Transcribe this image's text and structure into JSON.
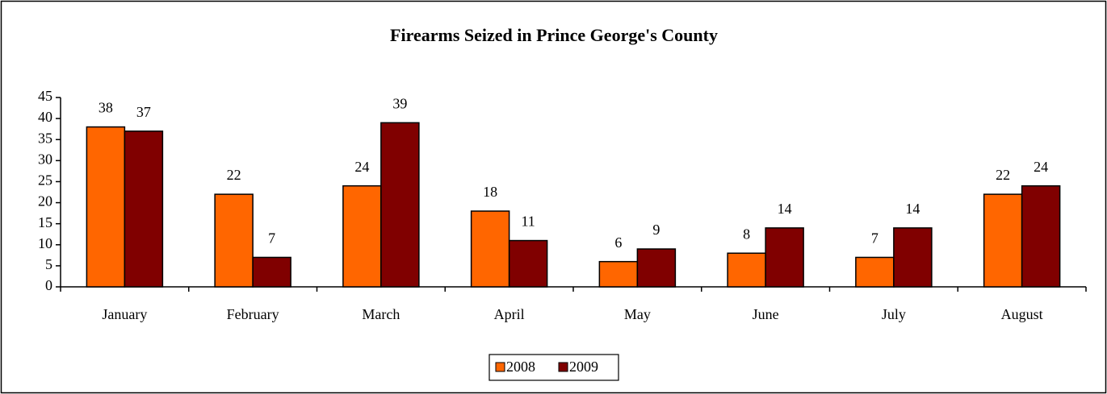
{
  "chart_data": {
    "type": "bar",
    "title": "Firearms Seized in Prince George's County",
    "categories": [
      "January",
      "February",
      "March",
      "April",
      "May",
      "June",
      "July",
      "August"
    ],
    "series": [
      {
        "name": "2008",
        "color": "#ff6600",
        "values": [
          38,
          22,
          24,
          18,
          6,
          8,
          7,
          22
        ]
      },
      {
        "name": "2009",
        "color": "#800000",
        "values": [
          37,
          7,
          39,
          11,
          9,
          14,
          14,
          24
        ]
      }
    ],
    "ylim": [
      0,
      45
    ],
    "yticks": [
      0,
      5,
      10,
      15,
      20,
      25,
      30,
      35,
      40,
      45
    ],
    "legend": "bottom"
  }
}
